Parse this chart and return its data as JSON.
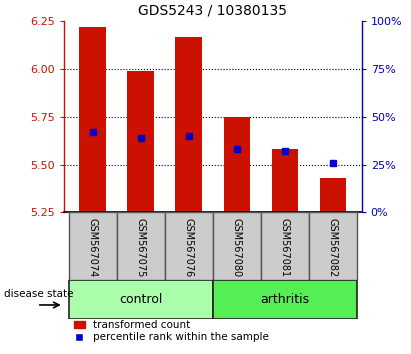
{
  "title": "GDS5243 / 10380135",
  "samples": [
    "GSM567074",
    "GSM567075",
    "GSM567076",
    "GSM567080",
    "GSM567081",
    "GSM567082"
  ],
  "bar_values": [
    6.22,
    5.99,
    6.17,
    5.75,
    5.58,
    5.43
  ],
  "bar_bottom": 5.25,
  "percentile_values": [
    5.67,
    5.64,
    5.65,
    5.58,
    5.57,
    5.51
  ],
  "ylim": [
    5.25,
    6.25
  ],
  "y2lim": [
    0,
    100
  ],
  "yticks": [
    5.25,
    5.5,
    5.75,
    6.0,
    6.25
  ],
  "y2ticks": [
    0,
    25,
    50,
    75,
    100
  ],
  "bar_color": "#cc1100",
  "percentile_color": "#0000cc",
  "control_bg": "#aaffaa",
  "arthritis_bg": "#55ee55",
  "ylabel_left_color": "#cc1100",
  "ylabel_right_color": "#0000bb",
  "grid_color": "#000000",
  "bar_width": 0.55,
  "sample_box_color": "#cccccc",
  "sample_box_edge": "#555555",
  "group_line_color": "#222222"
}
